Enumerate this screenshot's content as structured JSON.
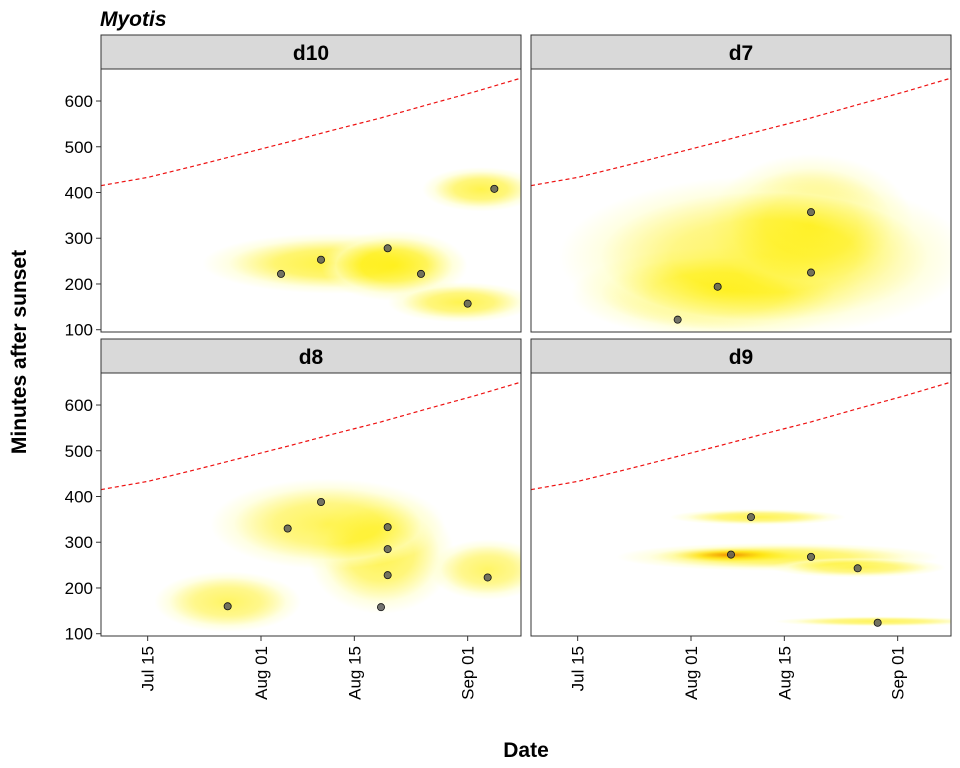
{
  "chart_data": {
    "type": "scatter",
    "title": "Myotis",
    "xlabel": "Date",
    "ylabel": "Minutes after sunset",
    "x_ticks": [
      "Jul 15",
      "Aug 01",
      "Aug 15",
      "Sep 01"
    ],
    "x_tick_dates": [
      "2021-07-15",
      "2021-08-01",
      "2021-08-15",
      "2021-09-01"
    ],
    "xlim": [
      "2021-07-08",
      "2021-09-09"
    ],
    "y_ticks": [
      100,
      200,
      300,
      400,
      500,
      600
    ],
    "ylim": [
      95,
      670
    ],
    "grid": false,
    "colors": {
      "sunrise_line": "#ee1111",
      "density_low": "#ffffcc",
      "density_mid": "#ffee00",
      "density_high": "#dd1100",
      "strip_bg": "#d9d9d9",
      "point": "#5a5a5a"
    },
    "sunrise_line": {
      "x": [
        "2021-07-08",
        "2021-07-15",
        "2021-07-22",
        "2021-07-29",
        "2021-08-05",
        "2021-08-12",
        "2021-08-19",
        "2021-08-26",
        "2021-09-02",
        "2021-09-09"
      ],
      "y": [
        415,
        433,
        458,
        484,
        510,
        537,
        563,
        592,
        620,
        650
      ]
    },
    "panels": [
      {
        "name": "d10",
        "points": [
          {
            "x": "2021-08-04",
            "y": 222
          },
          {
            "x": "2021-08-10",
            "y": 253
          },
          {
            "x": "2021-08-20",
            "y": 278
          },
          {
            "x": "2021-08-25",
            "y": 222
          },
          {
            "x": "2021-09-01",
            "y": 157
          },
          {
            "x": "2021-09-05",
            "y": 408
          }
        ],
        "density": [
          {
            "x": "2021-08-12",
            "y": 245,
            "sx": 9,
            "sy": 30,
            "level": 0.4
          },
          {
            "x": "2021-08-21",
            "y": 240,
            "sx": 5,
            "sy": 35,
            "level": 0.35
          },
          {
            "x": "2021-09-03",
            "y": 407,
            "sx": 4,
            "sy": 22,
            "level": 0.3
          },
          {
            "x": "2021-08-31",
            "y": 160,
            "sx": 5,
            "sy": 20,
            "level": 0.28
          }
        ]
      },
      {
        "name": "d7",
        "points": [
          {
            "x": "2021-07-30",
            "y": 122
          },
          {
            "x": "2021-08-05",
            "y": 194
          },
          {
            "x": "2021-08-19",
            "y": 225
          },
          {
            "x": "2021-08-19",
            "y": 357
          }
        ],
        "density": [
          {
            "x": "2021-08-05",
            "y": 180,
            "sx": 10,
            "sy": 45,
            "level": 0.45
          },
          {
            "x": "2021-08-19",
            "y": 330,
            "sx": 7,
            "sy": 70,
            "level": 0.3
          },
          {
            "x": "2021-08-12",
            "y": 260,
            "sx": 14,
            "sy": 80,
            "level": 0.18
          }
        ]
      },
      {
        "name": "d8",
        "points": [
          {
            "x": "2021-07-27",
            "y": 160
          },
          {
            "x": "2021-08-05",
            "y": 330
          },
          {
            "x": "2021-08-10",
            "y": 388
          },
          {
            "x": "2021-08-19",
            "y": 158
          },
          {
            "x": "2021-08-20",
            "y": 228
          },
          {
            "x": "2021-08-20",
            "y": 285
          },
          {
            "x": "2021-08-20",
            "y": 333
          },
          {
            "x": "2021-09-04",
            "y": 223
          }
        ],
        "density": [
          {
            "x": "2021-08-19",
            "y": 275,
            "sx": 5,
            "sy": 60,
            "level": 0.28
          },
          {
            "x": "2021-08-11",
            "y": 340,
            "sx": 8,
            "sy": 45,
            "level": 0.2
          },
          {
            "x": "2021-07-27",
            "y": 170,
            "sx": 5,
            "sy": 30,
            "level": 0.12
          },
          {
            "x": "2021-09-04",
            "y": 240,
            "sx": 4,
            "sy": 30,
            "level": 0.1
          }
        ]
      },
      {
        "name": "d9",
        "points": [
          {
            "x": "2021-08-10",
            "y": 355
          },
          {
            "x": "2021-08-07",
            "y": 273
          },
          {
            "x": "2021-08-19",
            "y": 268
          },
          {
            "x": "2021-08-26",
            "y": 243
          },
          {
            "x": "2021-08-29",
            "y": 124
          }
        ],
        "density": [
          {
            "x": "2021-08-07",
            "y": 272,
            "sx": 5,
            "sy": 8,
            "level": 1.0
          },
          {
            "x": "2021-08-14",
            "y": 268,
            "sx": 11,
            "sy": 14,
            "level": 0.3
          },
          {
            "x": "2021-08-26",
            "y": 245,
            "sx": 6,
            "sy": 10,
            "level": 0.22
          },
          {
            "x": "2021-08-11",
            "y": 355,
            "sx": 6,
            "sy": 8,
            "level": 0.25
          },
          {
            "x": "2021-08-29",
            "y": 127,
            "sx": 7,
            "sy": 5,
            "level": 0.18
          }
        ]
      }
    ]
  }
}
